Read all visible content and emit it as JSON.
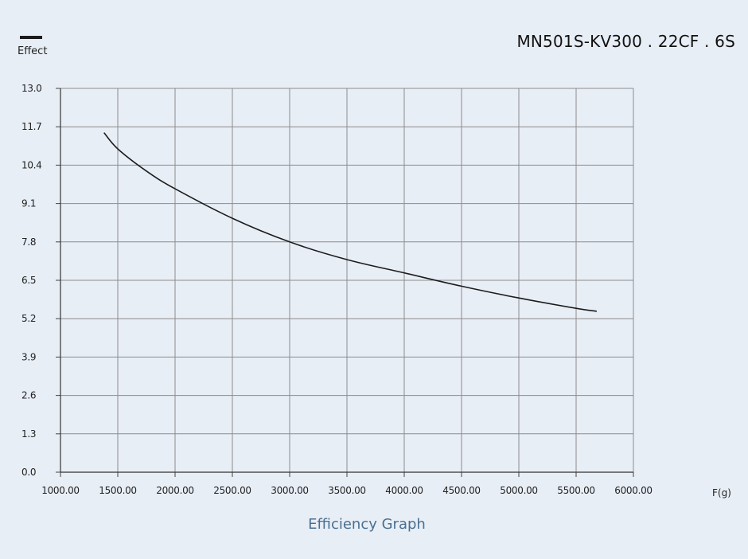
{
  "legend": {
    "label": "Effect",
    "line_color": "#1c1c1c"
  },
  "model_title": "MN501S-KV300 . 22CF . 6S",
  "caption": "Efficiency Graph",
  "colors": {
    "background": "#e8eef6",
    "grid": "#8c8c8c",
    "curve": "#1c1c1c",
    "caption": "#4a6f90"
  },
  "chart_data": {
    "type": "line",
    "title": "Efficiency Graph",
    "xlabel": "F(g)",
    "ylabel": "Effect",
    "xlim": [
      1000,
      6000
    ],
    "ylim": [
      0,
      13.0
    ],
    "x_ticks": [
      "1000.00",
      "1500.00",
      "2000.00",
      "2500.00",
      "3000.00",
      "3500.00",
      "4000.00",
      "4500.00",
      "5000.00",
      "5500.00",
      "6000.00"
    ],
    "y_ticks": [
      "0.0",
      "1.3",
      "2.6",
      "3.9",
      "5.2",
      "6.5",
      "7.8",
      "9.1",
      "10.4",
      "11.7",
      "13.0"
    ],
    "grid": true,
    "series": [
      {
        "name": "Effect",
        "x": [
          1380,
          1500,
          1750,
          2000,
          2500,
          3000,
          3500,
          4000,
          4500,
          5000,
          5500,
          5680
        ],
        "y": [
          11.5,
          10.95,
          10.2,
          9.6,
          8.6,
          7.8,
          7.2,
          6.75,
          6.3,
          5.9,
          5.55,
          5.45
        ]
      }
    ]
  }
}
